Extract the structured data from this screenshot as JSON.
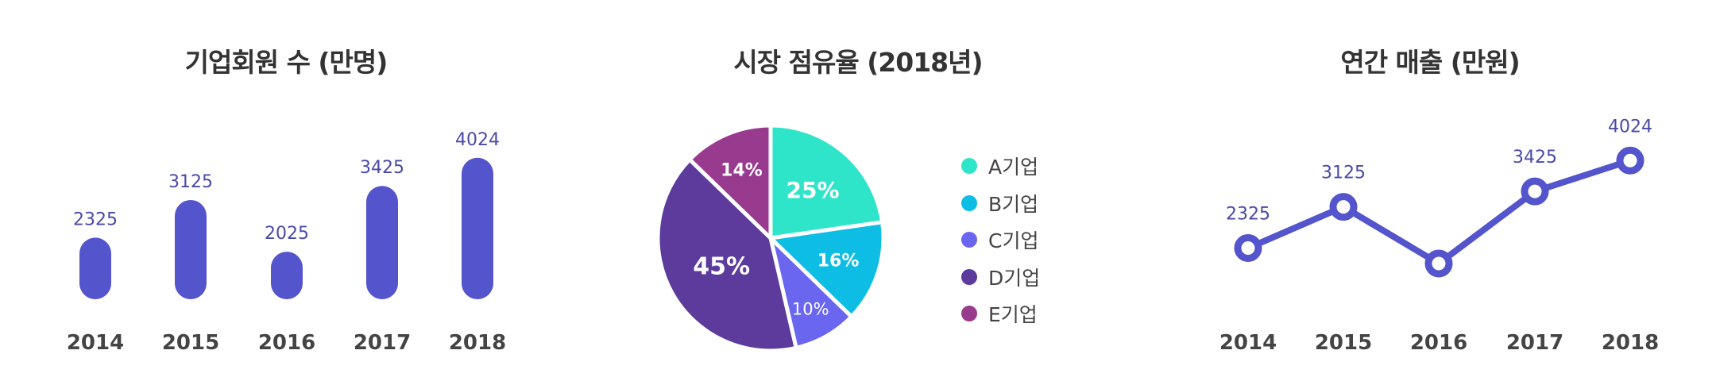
{
  "chart_data": [
    {
      "type": "bar",
      "title": "기업회원 수 (만명)",
      "categories": [
        "2014",
        "2015",
        "2016",
        "2017",
        "2018"
      ],
      "values": [
        2325,
        3125,
        2025,
        3425,
        4024
      ],
      "color": "#5454cc"
    },
    {
      "type": "pie",
      "title": "시장 점유율 (2018년)",
      "labels": [
        "A기업",
        "B기업",
        "C기업",
        "D기업",
        "E기업"
      ],
      "values": [
        25,
        16,
        10,
        45,
        14
      ],
      "value_labels": [
        "25%",
        "16%",
        "10%",
        "45%",
        "14%"
      ],
      "colors": [
        "#2ee5c9",
        "#0dbde3",
        "#6b66f0",
        "#5c3b9c",
        "#983b8f"
      ]
    },
    {
      "type": "line",
      "title": "연간 매출 (만원)",
      "categories": [
        "2014",
        "2015",
        "2016",
        "2017",
        "2018"
      ],
      "values": [
        2325,
        3125,
        2025,
        3425,
        4024
      ],
      "value_labels": [
        "2325",
        "3125",
        "",
        "3425",
        "4024"
      ],
      "color": "#5454cc"
    }
  ]
}
